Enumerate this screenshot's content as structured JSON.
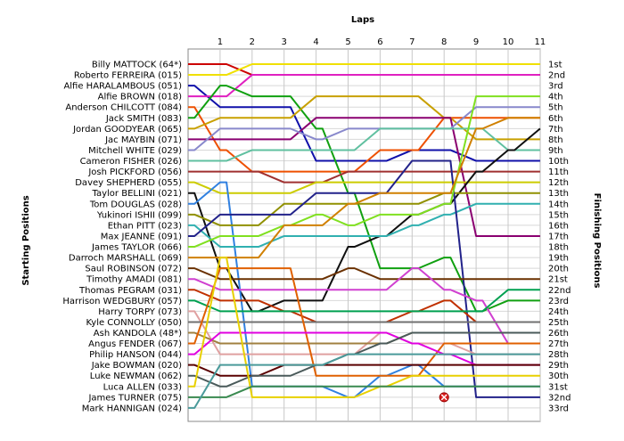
{
  "chart_data": {
    "type": "line",
    "title": "",
    "xlabel": "Laps",
    "ylabel_left": "Starting Positions",
    "ylabel_right": "Finishing Positions",
    "laps": [
      1,
      2,
      3,
      4,
      5,
      6,
      7,
      8,
      9,
      10,
      11
    ],
    "grid": true,
    "positions_count": 33,
    "finishing_labels": [
      "1st",
      "2nd",
      "3rd",
      "4th",
      "5th",
      "6th",
      "7th",
      "8th",
      "9th",
      "10th",
      "11th",
      "12th",
      "13th",
      "14th",
      "15th",
      "16th",
      "17th",
      "18th",
      "19th",
      "20th",
      "21st",
      "22nd",
      "23rd",
      "24th",
      "25th",
      "26th",
      "27th",
      "28th",
      "29th",
      "30th",
      "31st",
      "32nd",
      "33rd"
    ],
    "retirement_marker": {
      "lap": 8,
      "position": 32
    },
    "series": [
      {
        "name": "Billy MATTOCK (64*)",
        "color": "#cc0000",
        "positions": [
          1,
          1,
          2,
          2,
          2,
          2,
          2,
          2,
          2,
          2,
          2,
          2
        ]
      },
      {
        "name": "Roberto FERREIRA (015)",
        "color": "#f0e000",
        "positions": [
          2,
          2,
          1,
          1,
          1,
          1,
          1,
          1,
          1,
          1,
          1,
          1
        ]
      },
      {
        "name": "Alfie HARALAMBOUS (051)",
        "color": "#1010aa",
        "positions": [
          3,
          5,
          5,
          5,
          10,
          10,
          10,
          9,
          9,
          10,
          10,
          10
        ]
      },
      {
        "name": "Alfie BROWN (018)",
        "color": "#e020c0",
        "positions": [
          4,
          4,
          2,
          2,
          2,
          2,
          2,
          2,
          2,
          2,
          2,
          2
        ]
      },
      {
        "name": "Anderson CHILCOTT (084)",
        "color": "#ee5000",
        "positions": [
          5,
          9,
          11,
          11,
          11,
          11,
          9,
          9,
          6,
          6,
          6,
          6
        ]
      },
      {
        "name": "Jack SMITH (083)",
        "color": "#10a010",
        "positions": [
          6,
          3,
          4,
          4,
          7,
          13,
          20,
          20,
          19,
          24,
          23,
          23
        ]
      },
      {
        "name": "Jordan GOODYEAR (065)",
        "color": "#c8a000",
        "positions": [
          7,
          6,
          6,
          6,
          4,
          4,
          4,
          4,
          6,
          8,
          8,
          8
        ]
      },
      {
        "name": "Jac MAYBIN (071)",
        "color": "#8a0070",
        "positions": [
          8,
          8,
          8,
          8,
          6,
          6,
          6,
          6,
          6,
          17,
          17,
          17
        ]
      },
      {
        "name": "Mitchell WHITE (029)",
        "color": "#8888cc",
        "positions": [
          9,
          7,
          7,
          7,
          8,
          7,
          7,
          7,
          7,
          5,
          5,
          5
        ]
      },
      {
        "name": "Cameron FISHER (026)",
        "color": "#60c0a0",
        "positions": [
          10,
          10,
          9,
          9,
          9,
          9,
          7,
          7,
          7,
          7,
          9,
          9
        ]
      },
      {
        "name": "Josh PICKFORD (056)",
        "color": "#a03030",
        "positions": [
          11,
          11,
          11,
          12,
          12,
          11,
          11,
          11,
          11,
          11,
          11,
          11
        ]
      },
      {
        "name": "Davey SHEPHERD (055)",
        "color": "#cccc00",
        "positions": [
          12,
          13,
          13,
          13,
          12,
          12,
          12,
          12,
          12,
          12,
          12,
          12
        ]
      },
      {
        "name": "Taylor BELLINI (021)",
        "color": "#101010",
        "positions": [
          13,
          20,
          24,
          23,
          23,
          18,
          17,
          15,
          14,
          11,
          9,
          7
        ]
      },
      {
        "name": "Tom DOUGLAS (028)",
        "color": "#3080e0",
        "positions": [
          14,
          12,
          31,
          31,
          31,
          32,
          30,
          29,
          31,
          31,
          31,
          31
        ]
      },
      {
        "name": "Yukinori ISHII (099)",
        "color": "#909000",
        "positions": [
          15,
          16,
          16,
          14,
          14,
          14,
          14,
          14,
          13,
          13,
          13,
          13
        ]
      },
      {
        "name": "Ethan PITT (023)",
        "color": "#30b0b0",
        "positions": [
          16,
          18,
          18,
          17,
          17,
          17,
          17,
          16,
          15,
          14,
          14,
          14
        ]
      },
      {
        "name": "Max JEANNE (091)",
        "color": "#22228a",
        "positions": [
          17,
          15,
          15,
          15,
          13,
          13,
          13,
          10,
          10,
          32,
          32,
          32
        ]
      },
      {
        "name": "James TAYLOR (066)",
        "color": "#80e020",
        "positions": [
          18,
          17,
          17,
          16,
          15,
          16,
          15,
          15,
          14,
          4,
          4,
          4
        ]
      },
      {
        "name": "Darroch MARSHALL (069)",
        "color": "#d08000",
        "positions": [
          19,
          19,
          19,
          16,
          16,
          14,
          13,
          13,
          13,
          7,
          6,
          6
        ]
      },
      {
        "name": "Saul ROBINSON (072)",
        "color": "#6a3000",
        "positions": [
          20,
          21,
          21,
          21,
          21,
          20,
          21,
          21,
          21,
          21,
          21,
          21
        ]
      },
      {
        "name": "Timothy AMADI (081)",
        "color": "#d040d0",
        "positions": [
          21,
          22,
          22,
          22,
          22,
          22,
          22,
          20,
          22,
          23,
          27,
          27
        ]
      },
      {
        "name": "Thomas PEGRAM (031)",
        "color": "#c03000",
        "positions": [
          22,
          23,
          23,
          24,
          25,
          25,
          25,
          24,
          23,
          25,
          25,
          25
        ]
      },
      {
        "name": "Harrison WEDGBURY (057)",
        "color": "#00a050",
        "positions": [
          23,
          24,
          24,
          24,
          24,
          24,
          24,
          24,
          24,
          24,
          22,
          22
        ]
      },
      {
        "name": "Harry TORPY (073)",
        "color": "#e0a0a0",
        "positions": [
          24,
          28,
          28,
          28,
          28,
          28,
          26,
          27,
          27,
          28,
          28,
          28
        ]
      },
      {
        "name": "Kyle CONNOLLY (050)",
        "color": "#707070",
        "positions": [
          25,
          25,
          25,
          25,
          25,
          25,
          25,
          25,
          25,
          25,
          25,
          25
        ]
      },
      {
        "name": "Ash KANDOLA (48*)",
        "color": "#a08040",
        "positions": [
          26,
          27,
          27,
          27,
          27,
          27,
          27,
          26,
          26,
          26,
          26,
          26
        ]
      },
      {
        "name": "Angus FENDER (067)",
        "color": "#e06000",
        "positions": [
          27,
          20,
          20,
          20,
          30,
          30,
          30,
          30,
          27,
          27,
          27,
          27
        ]
      },
      {
        "name": "Philip HANSON (044)",
        "color": "#e000e0",
        "positions": [
          28,
          26,
          26,
          26,
          26,
          26,
          26,
          27,
          28,
          29,
          29,
          29
        ]
      },
      {
        "name": "Jake BOWMAN (020)",
        "color": "#5a0000",
        "positions": [
          29,
          30,
          30,
          29,
          29,
          29,
          29,
          29,
          29,
          29,
          29,
          29
        ]
      },
      {
        "name": "Luke NEWMAN (062)",
        "color": "#4a5a5a",
        "positions": [
          30,
          31,
          30,
          30,
          29,
          28,
          27,
          26,
          26,
          26,
          26,
          26
        ]
      },
      {
        "name": "Luca ALLEN (033)",
        "color": "#e8d000",
        "positions": [
          31,
          19,
          32,
          32,
          32,
          32,
          31,
          30,
          30,
          30,
          30,
          30
        ]
      },
      {
        "name": "James TURNER (075)",
        "color": "#3a8a50",
        "positions": [
          32,
          32,
          31,
          31,
          31,
          31,
          31,
          31,
          31,
          31,
          31,
          31
        ]
      },
      {
        "name": "Mark HANNIGAN (024)",
        "color": "#4a9a9a",
        "positions": [
          33,
          29,
          29,
          29,
          29,
          28,
          28,
          28,
          28,
          28,
          28,
          28
        ]
      }
    ]
  }
}
